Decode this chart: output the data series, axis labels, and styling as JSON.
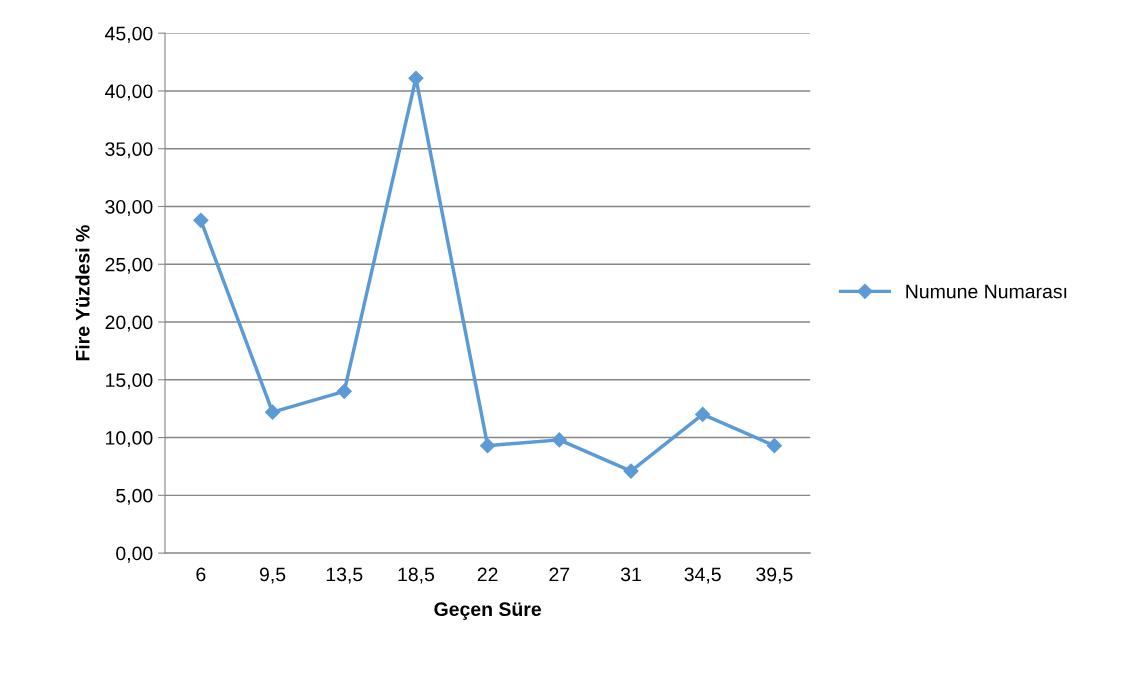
{
  "chart_data": {
    "type": "line",
    "xlabel": "Geçen Süre",
    "ylabel": "Fire Yüzdesi %",
    "categories": [
      "6",
      "9,5",
      "13,5",
      "18,5",
      "22",
      "27",
      "31",
      "34,5",
      "39,5"
    ],
    "series": [
      {
        "name": "Numune Numarası",
        "color": "#5b9bd5",
        "values": [
          28.8,
          12.2,
          14.0,
          41.1,
          9.3,
          9.8,
          7.1,
          12.0,
          9.3
        ]
      }
    ],
    "ylim": [
      0,
      45
    ],
    "yticks": [
      {
        "value": 0,
        "label": "0,00"
      },
      {
        "value": 5,
        "label": "5,00"
      },
      {
        "value": 10,
        "label": "10,00"
      },
      {
        "value": 15,
        "label": "15,00"
      },
      {
        "value": 20,
        "label": "20,00"
      },
      {
        "value": 25,
        "label": "25,00"
      },
      {
        "value": 30,
        "label": "30,00"
      },
      {
        "value": 35,
        "label": "35,00"
      },
      {
        "value": 40,
        "label": "40,00"
      },
      {
        "value": 45,
        "label": "45,00"
      }
    ],
    "grid": "y",
    "legend": "right",
    "marker": "diamond",
    "line_style": "solid"
  }
}
